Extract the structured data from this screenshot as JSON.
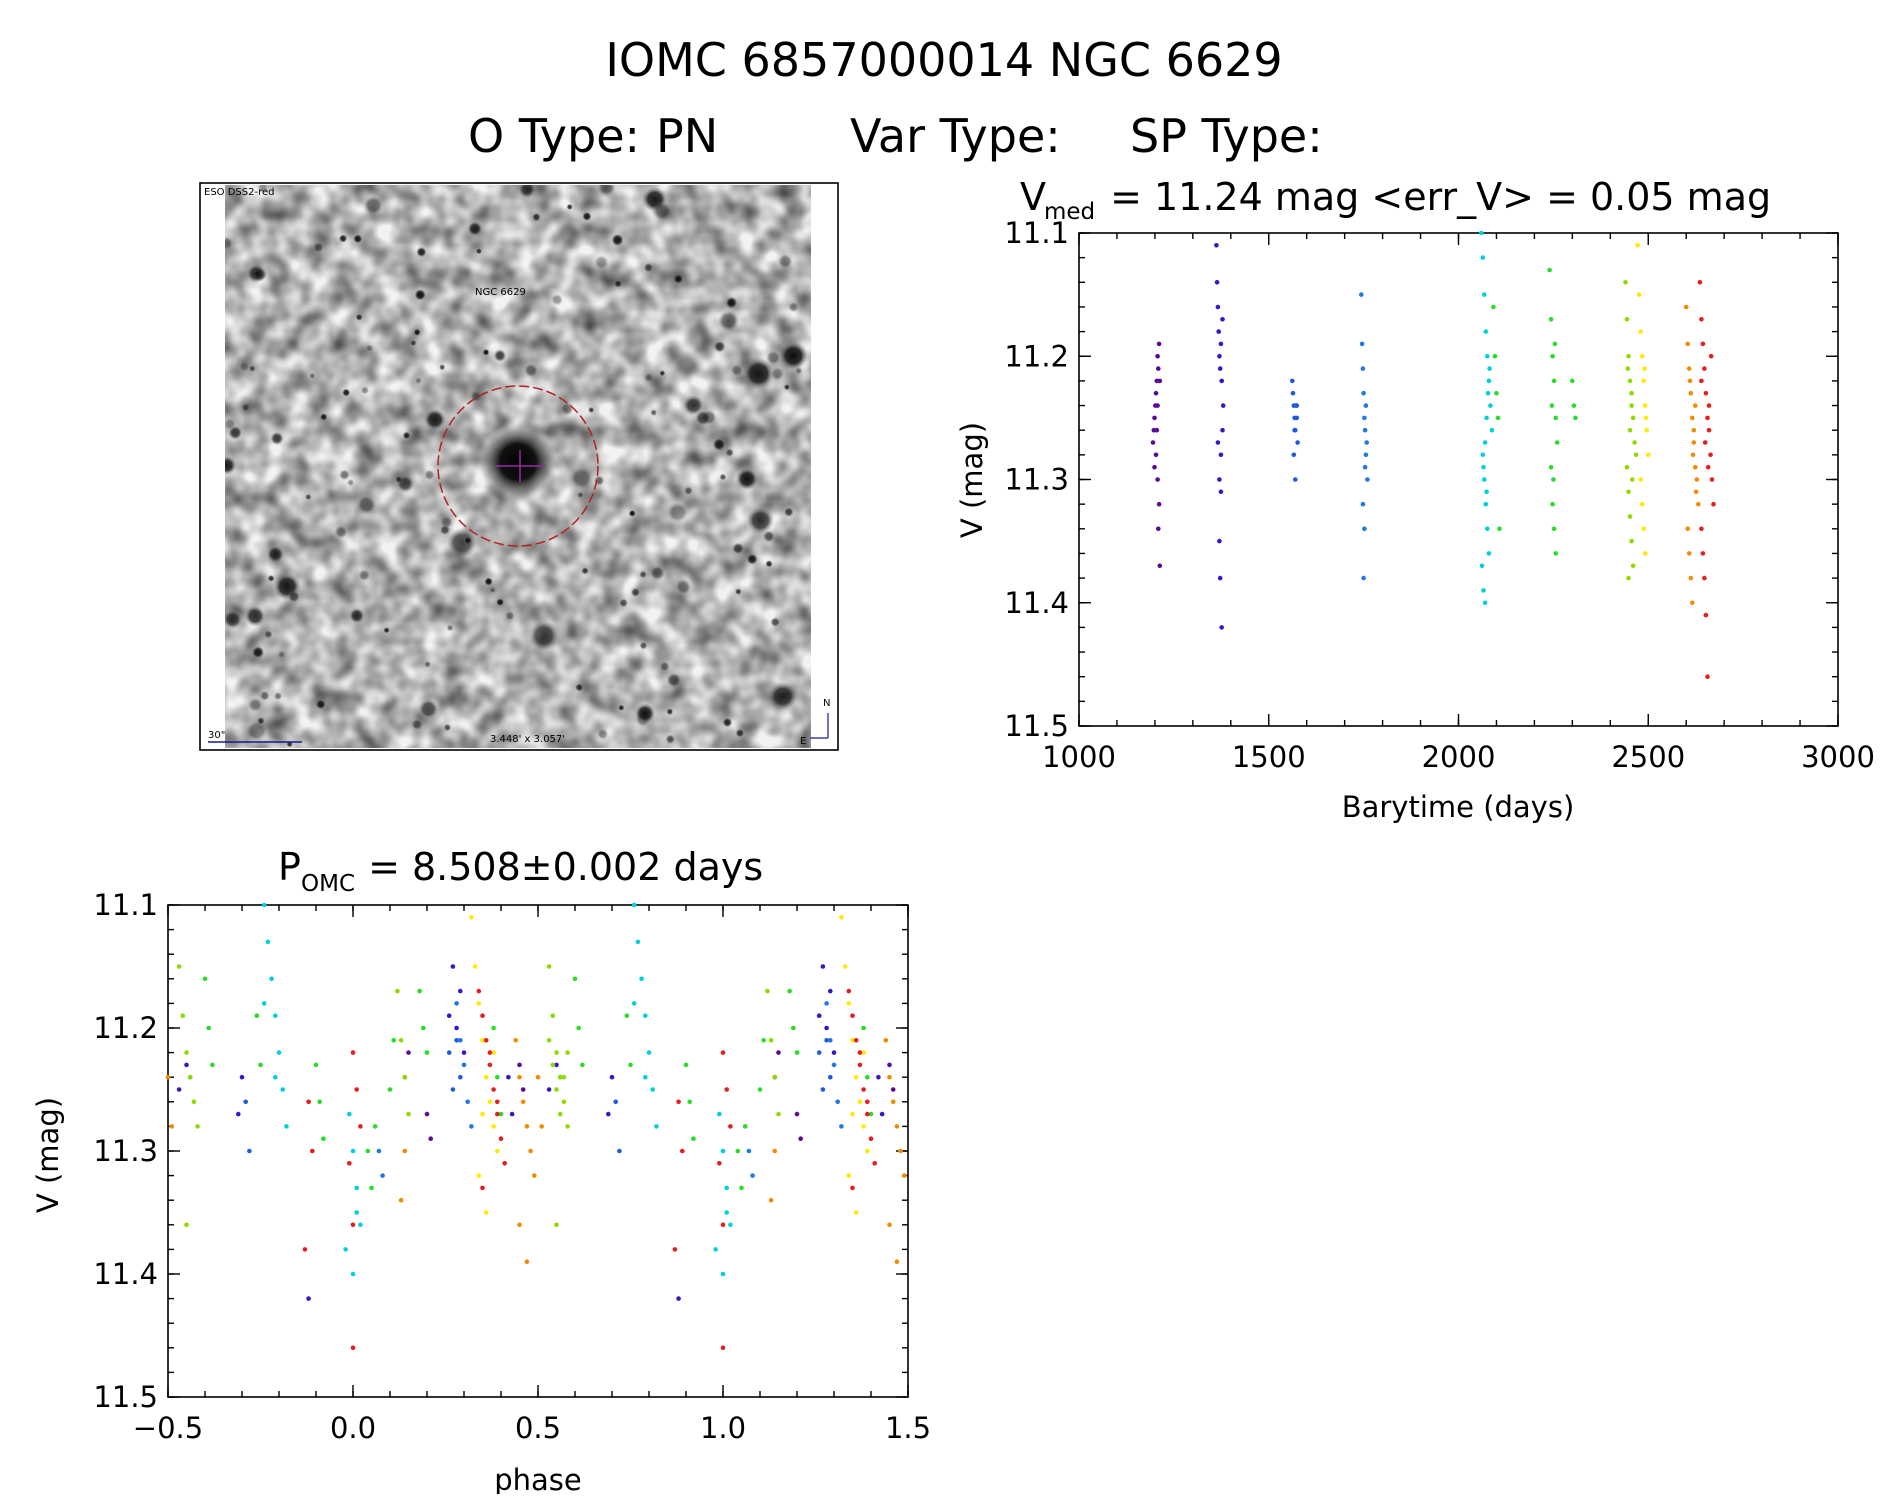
{
  "header": {
    "title_line1": "IOMC 6857000014    NGC  6629",
    "title_line2_parts": {
      "otype_label": "O Type:",
      "otype_value": "PN",
      "vartype_label": "Var Type:",
      "sptype_label": "SP Type:"
    }
  },
  "image_panel": {
    "survey_label": "ESO DSS2-red",
    "object_label": "NGC 6629",
    "scale_label": "30\"",
    "fov_label": "3.448' x 3.057'",
    "north_label": "N",
    "east_label": "E",
    "marker_color": "#b22222",
    "label_color": "#1a1a8c"
  },
  "chart_data": [
    {
      "id": "lightcurve",
      "type": "scatter",
      "title_prefix": "V",
      "title_subscript": "med",
      "title_rest": " = 11.24 mag <err_V> = 0.05 mag",
      "xlabel": "Barytime (days)",
      "ylabel": "V (mag)",
      "xlim": [
        1000,
        3000
      ],
      "ylim": [
        11.5,
        11.1
      ],
      "y_inverted": true,
      "x_ticks": [
        1000,
        1500,
        2000,
        2500,
        3000
      ],
      "x_tick_labels": [
        "1000",
        "1500",
        "2000",
        "2500",
        "3000"
      ],
      "y_ticks": [
        11.1,
        11.2,
        11.3,
        11.4,
        11.5
      ],
      "y_tick_labels": [
        "11.1",
        "11.2",
        "11.3",
        "11.4",
        "11.5"
      ],
      "series": [
        {
          "name": "season-1",
          "color": "#5a0a96",
          "x": [
            1195,
            1197,
            1199,
            1201,
            1203,
            1205,
            1207,
            1209,
            1211,
            1213,
            1199,
            1203,
            1207,
            1209,
            1211,
            1213,
            1205,
            1207
          ],
          "y": [
            11.27,
            11.26,
            11.25,
            11.24,
            11.23,
            11.22,
            11.2,
            11.21,
            11.19,
            11.22,
            11.29,
            11.28,
            11.3,
            11.34,
            11.32,
            11.37,
            11.26,
            11.24
          ]
        },
        {
          "name": "season-2",
          "color": "#3a14c8",
          "x": [
            1362,
            1364,
            1366,
            1368,
            1370,
            1372,
            1374,
            1376,
            1378,
            1380,
            1366,
            1370,
            1374,
            1378,
            1370,
            1372,
            1376,
            1374
          ],
          "y": [
            11.11,
            11.14,
            11.16,
            11.18,
            11.2,
            11.21,
            11.19,
            11.22,
            11.17,
            11.24,
            11.27,
            11.3,
            11.28,
            11.26,
            11.35,
            11.38,
            11.42,
            11.31
          ]
        },
        {
          "name": "season-3",
          "color": "#1e5adc",
          "x": [
            1562,
            1564,
            1566,
            1568,
            1570,
            1572,
            1574,
            1576,
            1566,
            1570,
            1574,
            1568
          ],
          "y": [
            11.22,
            11.23,
            11.24,
            11.25,
            11.26,
            11.24,
            11.25,
            11.27,
            11.28,
            11.3,
            11.24,
            11.26
          ]
        },
        {
          "name": "season-4",
          "color": "#1e78e6",
          "x": [
            1744,
            1746,
            1748,
            1750,
            1752,
            1754,
            1756,
            1758,
            1760,
            1748,
            1752,
            1750,
            1754,
            1756
          ],
          "y": [
            11.15,
            11.19,
            11.21,
            11.23,
            11.25,
            11.26,
            11.28,
            11.27,
            11.3,
            11.32,
            11.34,
            11.38,
            11.29,
            11.24
          ]
        },
        {
          "name": "season-5",
          "color": "#00d2dc",
          "x": [
            2060,
            2064,
            2068,
            2072,
            2076,
            2080,
            2084,
            2088,
            2064,
            2068,
            2072,
            2076,
            2080,
            2062,
            2066,
            2070,
            2074,
            2078,
            2082,
            2070,
            2066,
            2074
          ],
          "y": [
            11.1,
            11.12,
            11.15,
            11.18,
            11.2,
            11.22,
            11.24,
            11.26,
            11.28,
            11.3,
            11.32,
            11.34,
            11.36,
            11.37,
            11.39,
            11.4,
            11.25,
            11.23,
            11.21,
            11.27,
            11.29,
            11.31
          ]
        },
        {
          "name": "season-6",
          "color": "#28dc28",
          "x": [
            2092,
            2096,
            2100,
            2104,
            2108,
            2240,
            2244,
            2248,
            2252,
            2256,
            2260,
            2244,
            2248,
            2252,
            2256,
            2250,
            2246,
            2254,
            2300,
            2304,
            2308
          ],
          "y": [
            11.16,
            11.2,
            11.23,
            11.25,
            11.34,
            11.13,
            11.17,
            11.2,
            11.22,
            11.25,
            11.27,
            11.29,
            11.32,
            11.34,
            11.36,
            11.3,
            11.24,
            11.19,
            11.22,
            11.24,
            11.25
          ]
        },
        {
          "name": "season-7",
          "color": "#8cdc00",
          "x": [
            2440,
            2444,
            2448,
            2452,
            2456,
            2460,
            2464,
            2468,
            2444,
            2448,
            2452,
            2456,
            2460,
            2448,
            2452,
            2456,
            2446,
            2458
          ],
          "y": [
            11.14,
            11.17,
            11.2,
            11.22,
            11.24,
            11.25,
            11.27,
            11.28,
            11.29,
            11.31,
            11.33,
            11.35,
            11.37,
            11.38,
            11.26,
            11.23,
            11.21,
            11.3
          ]
        },
        {
          "name": "season-8",
          "color": "#ffea00",
          "x": [
            2472,
            2476,
            2480,
            2484,
            2488,
            2492,
            2496,
            2500,
            2480,
            2484,
            2488,
            2492,
            2494,
            2490
          ],
          "y": [
            11.11,
            11.15,
            11.18,
            11.2,
            11.22,
            11.24,
            11.26,
            11.28,
            11.3,
            11.32,
            11.34,
            11.36,
            11.25,
            11.21
          ]
        },
        {
          "name": "season-9",
          "color": "#f08c00",
          "x": [
            2600,
            2604,
            2608,
            2612,
            2616,
            2620,
            2624,
            2628,
            2632,
            2604,
            2608,
            2612,
            2616,
            2620,
            2624,
            2610,
            2618,
            2626
          ],
          "y": [
            11.16,
            11.19,
            11.21,
            11.23,
            11.25,
            11.27,
            11.29,
            11.3,
            11.32,
            11.34,
            11.36,
            11.38,
            11.4,
            11.26,
            11.24,
            11.22,
            11.28,
            11.31
          ]
        },
        {
          "name": "season-10",
          "color": "#e61e1e",
          "x": [
            2636,
            2640,
            2644,
            2648,
            2652,
            2656,
            2660,
            2664,
            2668,
            2672,
            2640,
            2644,
            2648,
            2652,
            2656,
            2660,
            2640,
            2650,
            2658,
            2666
          ],
          "y": [
            11.14,
            11.17,
            11.19,
            11.21,
            11.23,
            11.25,
            11.26,
            11.28,
            11.3,
            11.32,
            11.34,
            11.36,
            11.38,
            11.41,
            11.46,
            11.24,
            11.22,
            11.27,
            11.29,
            11.2
          ]
        }
      ]
    },
    {
      "id": "phased",
      "type": "scatter",
      "title_prefix": "P",
      "title_subscript": "OMC",
      "title_rest": " = 8.508±0.002 days",
      "xlabel": "phase",
      "ylabel": "V (mag)",
      "xlim": [
        -0.5,
        1.5
      ],
      "ylim": [
        11.5,
        11.1
      ],
      "y_inverted": true,
      "x_ticks": [
        -0.5,
        0.0,
        0.5,
        1.0,
        1.5
      ],
      "x_tick_labels": [
        "−0.5",
        "0.0",
        "0.5",
        "1.0",
        "1.5"
      ],
      "y_ticks": [
        11.1,
        11.2,
        11.3,
        11.4,
        11.5
      ],
      "y_tick_labels": [
        "11.1",
        "11.2",
        "11.3",
        "11.4",
        "11.5"
      ],
      "phase_series": [
        {
          "name": "season-1",
          "color": "#5a0a96",
          "phase": [
            0.14,
            0.15,
            0.2,
            0.21,
            0.45,
            0.46
          ],
          "y": [
            11.24,
            11.22,
            11.27,
            11.29,
            11.23,
            11.25
          ]
        },
        {
          "name": "season-2",
          "color": "#3a14c8",
          "phase": [
            -0.47,
            -0.45,
            -0.31,
            -0.3,
            0.26,
            0.28,
            0.29,
            0.3,
            -0.12,
            0.42,
            0.43,
            0.27
          ],
          "y": [
            11.25,
            11.23,
            11.27,
            11.24,
            11.19,
            11.2,
            11.17,
            11.22,
            11.42,
            11.24,
            11.27,
            11.15
          ]
        },
        {
          "name": "season-3",
          "color": "#1e5adc",
          "phase": [
            -0.29,
            -0.28,
            0.26,
            0.27,
            0.28,
            0.29
          ],
          "y": [
            11.26,
            11.3,
            11.22,
            11.25,
            11.21,
            11.24
          ]
        },
        {
          "name": "season-4",
          "color": "#1e78e6",
          "phase": [
            -0.44,
            0.28,
            0.29,
            0.3,
            0.31,
            0.32,
            0.08,
            0.07
          ],
          "y": [
            11.24,
            11.18,
            11.21,
            11.23,
            11.26,
            11.28,
            11.32,
            11.3
          ]
        },
        {
          "name": "season-5",
          "color": "#00d2dc",
          "phase": [
            -0.24,
            -0.23,
            -0.22,
            -0.21,
            -0.2,
            -0.19,
            -0.18,
            -0.01,
            0.0,
            0.01,
            0.02,
            -0.02,
            -0.21,
            -0.24,
            0.0,
            0.01
          ],
          "y": [
            11.1,
            11.13,
            11.16,
            11.19,
            11.22,
            11.25,
            11.28,
            11.27,
            11.3,
            11.33,
            11.36,
            11.38,
            11.24,
            11.18,
            11.4,
            11.35
          ]
        },
        {
          "name": "season-6",
          "color": "#28dc28",
          "phase": [
            -0.4,
            -0.39,
            -0.38,
            -0.1,
            -0.09,
            -0.08,
            0.18,
            0.19,
            0.2,
            0.38,
            0.39,
            0.4,
            0.04,
            0.05,
            0.06,
            -0.26,
            -0.25,
            0.1,
            0.11
          ],
          "y": [
            11.16,
            11.2,
            11.23,
            11.23,
            11.26,
            11.29,
            11.17,
            11.2,
            11.22,
            11.2,
            11.24,
            11.27,
            11.3,
            11.33,
            11.28,
            11.19,
            11.23,
            11.25,
            11.21
          ]
        },
        {
          "name": "season-7",
          "color": "#8cdc00",
          "phase": [
            -0.47,
            -0.46,
            -0.45,
            -0.44,
            -0.43,
            -0.42,
            0.12,
            0.13,
            0.14,
            0.15,
            -0.45,
            0.53,
            0.54,
            0.55,
            0.56,
            0.57,
            0.58
          ],
          "y": [
            11.15,
            11.19,
            11.22,
            11.24,
            11.26,
            11.28,
            11.17,
            11.21,
            11.24,
            11.27,
            11.36,
            11.21,
            11.23,
            11.25,
            11.27,
            11.24,
            11.22
          ]
        },
        {
          "name": "season-8",
          "color": "#ffea00",
          "phase": [
            0.32,
            0.33,
            0.34,
            0.35,
            0.36,
            0.37,
            0.38,
            0.39,
            0.34,
            0.36,
            0.38,
            0.35
          ],
          "y": [
            11.11,
            11.15,
            11.18,
            11.21,
            11.24,
            11.26,
            11.28,
            11.3,
            11.32,
            11.35,
            11.22,
            11.27
          ]
        },
        {
          "name": "season-9",
          "color": "#f08c00",
          "phase": [
            -0.5,
            -0.49,
            0.44,
            0.45,
            0.46,
            0.47,
            0.48,
            0.49,
            0.14,
            0.13,
            0.45,
            0.47
          ],
          "y": [
            11.24,
            11.28,
            11.21,
            11.24,
            11.26,
            11.28,
            11.3,
            11.32,
            11.3,
            11.34,
            11.36,
            11.39
          ]
        },
        {
          "name": "season-10",
          "color": "#e61e1e",
          "phase": [
            0.34,
            0.35,
            0.36,
            0.37,
            0.38,
            0.39,
            0.4,
            0.41,
            0.35,
            0.37,
            0.39,
            0.0,
            0.01,
            0.02,
            -0.01,
            0.0,
            -0.12,
            -0.11,
            -0.13,
            0.0
          ],
          "y": [
            11.17,
            11.19,
            11.21,
            11.23,
            11.25,
            11.27,
            11.29,
            11.31,
            11.33,
            11.22,
            11.26,
            11.22,
            11.25,
            11.28,
            11.31,
            11.36,
            11.26,
            11.3,
            11.38,
            11.46
          ]
        }
      ]
    }
  ]
}
